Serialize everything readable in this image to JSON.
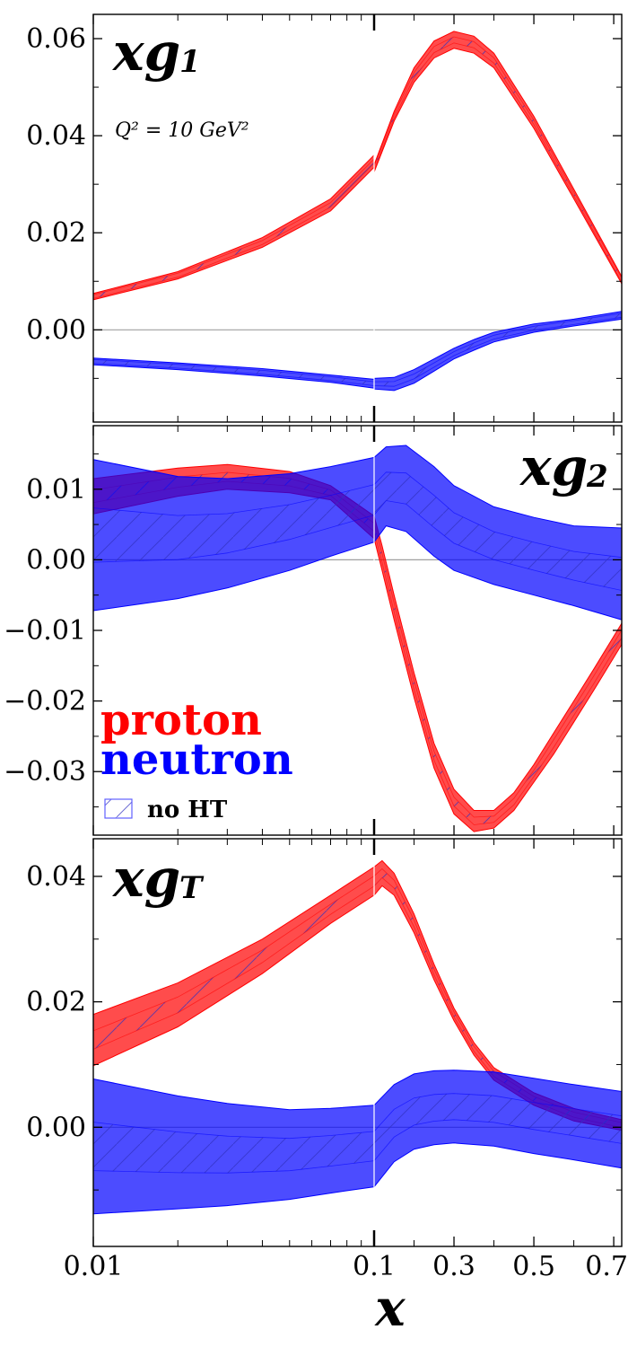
{
  "chart_data": [
    {
      "type": "area",
      "panel_label": "xg",
      "panel_label_sub": "1",
      "annotation": "Q² = 10 GeV²",
      "xlabel": "",
      "ylabel": "",
      "xscale": "log(x<0.1), linear(x>=0.1)",
      "xlim": [
        0.01,
        0.72
      ],
      "ylim": [
        -0.019,
        0.065
      ],
      "yticks": [
        0.0,
        0.02,
        0.04,
        0.06
      ],
      "ytick_labels": [
        "0.00",
        "0.02",
        "0.04",
        "0.06"
      ],
      "grid": false,
      "series": [
        {
          "name": "proton",
          "x": [
            0.01,
            0.02,
            0.04,
            0.07,
            0.1,
            0.1,
            0.15,
            0.2,
            0.25,
            0.3,
            0.35,
            0.4,
            0.5,
            0.6,
            0.72
          ],
          "upper": [
            0.0075,
            0.012,
            0.019,
            0.027,
            0.036,
            0.034,
            0.045,
            0.054,
            0.0595,
            0.0615,
            0.0605,
            0.057,
            0.044,
            0.029,
            0.011
          ],
          "lower": [
            0.0062,
            0.0105,
            0.017,
            0.0245,
            0.0335,
            0.0325,
            0.043,
            0.051,
            0.056,
            0.058,
            0.057,
            0.054,
            0.0415,
            0.027,
            0.0095
          ]
        },
        {
          "name": "neutron",
          "x": [
            0.01,
            0.02,
            0.04,
            0.07,
            0.1,
            0.1,
            0.15,
            0.2,
            0.25,
            0.3,
            0.35,
            0.4,
            0.5,
            0.6,
            0.72
          ],
          "upper": [
            -0.0058,
            -0.0068,
            -0.008,
            -0.0093,
            -0.0102,
            -0.01,
            -0.0098,
            -0.0082,
            -0.006,
            -0.0038,
            -0.002,
            -0.0005,
            0.0012,
            0.0022,
            0.0038
          ],
          "lower": [
            -0.0072,
            -0.0082,
            -0.0095,
            -0.0108,
            -0.012,
            -0.0122,
            -0.0125,
            -0.011,
            -0.0085,
            -0.006,
            -0.0042,
            -0.0025,
            -0.0005,
            0.0008,
            0.0022
          ]
        }
      ]
    },
    {
      "type": "area",
      "panel_label": "xg",
      "panel_label_sub": "2",
      "xlabel": "",
      "ylabel": "",
      "xscale": "log(x<0.1), linear(x>=0.1)",
      "xlim": [
        0.01,
        0.72
      ],
      "ylim": [
        -0.039,
        0.019
      ],
      "yticks": [
        -0.03,
        -0.02,
        -0.01,
        0.0,
        0.01
      ],
      "ytick_labels": [
        "−0.03",
        "−0.02",
        "−0.01",
        "0.00",
        "0.01"
      ],
      "grid": false,
      "series": [
        {
          "name": "proton",
          "x": [
            0.01,
            0.02,
            0.03,
            0.05,
            0.07,
            0.1,
            0.1,
            0.12,
            0.15,
            0.2,
            0.25,
            0.3,
            0.35,
            0.4,
            0.45,
            0.5,
            0.55,
            0.6,
            0.65,
            0.72
          ],
          "upper": [
            0.0115,
            0.013,
            0.0135,
            0.0125,
            0.0105,
            0.0062,
            0.0062,
            0.002,
            -0.005,
            -0.016,
            -0.026,
            -0.0325,
            -0.0355,
            -0.0355,
            -0.033,
            -0.029,
            -0.0245,
            -0.02,
            -0.0155,
            -0.009
          ],
          "lower": [
            0.0065,
            0.009,
            0.01,
            0.0095,
            0.0085,
            0.003,
            0.003,
            -0.0015,
            -0.0085,
            -0.0195,
            -0.0295,
            -0.036,
            -0.0385,
            -0.038,
            -0.0355,
            -0.0315,
            -0.0275,
            -0.023,
            -0.0185,
            -0.012
          ]
        },
        {
          "name": "neutron",
          "x": [
            0.01,
            0.02,
            0.03,
            0.05,
            0.07,
            0.1,
            0.1,
            0.13,
            0.18,
            0.25,
            0.3,
            0.4,
            0.5,
            0.6,
            0.72
          ],
          "upper": [
            0.0142,
            0.0118,
            0.0115,
            0.0122,
            0.0132,
            0.0145,
            0.0145,
            0.016,
            0.0162,
            0.0132,
            0.0105,
            0.0075,
            0.006,
            0.0048,
            0.0045
          ],
          "lower": [
            -0.0072,
            -0.0055,
            -0.004,
            -0.0015,
            0.0005,
            0.0025,
            0.0025,
            0.0048,
            0.004,
            0.0005,
            -0.0015,
            -0.0035,
            -0.005,
            -0.0065,
            -0.0085
          ]
        }
      ]
    },
    {
      "type": "area",
      "panel_label": "xg",
      "panel_label_sub": "T",
      "xlabel": "",
      "ylabel": "",
      "xscale": "log(x<0.1), linear(x>=0.1)",
      "xlim": [
        0.01,
        0.72
      ],
      "ylim": [
        -0.019,
        0.046
      ],
      "yticks": [
        0.0,
        0.02,
        0.04
      ],
      "ytick_labels": [
        "0.00",
        "0.02",
        "0.04"
      ],
      "grid": false,
      "series": [
        {
          "name": "proton",
          "x": [
            0.01,
            0.02,
            0.04,
            0.07,
            0.1,
            0.1,
            0.12,
            0.15,
            0.2,
            0.25,
            0.3,
            0.35,
            0.4,
            0.5,
            0.6,
            0.72
          ],
          "upper": [
            0.018,
            0.023,
            0.03,
            0.037,
            0.0415,
            0.0415,
            0.0425,
            0.0405,
            0.034,
            0.026,
            0.019,
            0.0135,
            0.0095,
            0.0055,
            0.003,
            0.0012
          ],
          "lower": [
            0.0098,
            0.016,
            0.0245,
            0.0325,
            0.037,
            0.037,
            0.0385,
            0.037,
            0.031,
            0.0235,
            0.017,
            0.0115,
            0.0075,
            0.0035,
            0.001,
            -0.0005
          ]
        },
        {
          "name": "neutron",
          "x": [
            0.01,
            0.02,
            0.03,
            0.05,
            0.07,
            0.1,
            0.1,
            0.15,
            0.2,
            0.25,
            0.3,
            0.4,
            0.5,
            0.6,
            0.72
          ],
          "upper": [
            0.0077,
            0.005,
            0.0038,
            0.0028,
            0.003,
            0.0035,
            0.0035,
            0.0068,
            0.0085,
            0.009,
            0.0091,
            0.0088,
            0.0078,
            0.0068,
            0.0057
          ],
          "lower": [
            -0.0138,
            -0.013,
            -0.0125,
            -0.0115,
            -0.0105,
            -0.0095,
            -0.0095,
            -0.0055,
            -0.0035,
            -0.0028,
            -0.0025,
            -0.003,
            -0.0042,
            -0.0052,
            -0.0065
          ]
        }
      ]
    }
  ],
  "xticks": [
    0.01,
    0.1,
    0.3,
    0.5,
    0.7
  ],
  "xtick_labels": [
    "0.01",
    "0.1",
    "0.3",
    "0.5",
    "0.7"
  ],
  "xlabel": "x",
  "legend": {
    "proton": "proton",
    "neutron": "neutron",
    "noht": "no HT",
    "placement": "lower-left of middle panel"
  },
  "colors": {
    "proton": "#ff0000",
    "neutron": "#0000ff",
    "zero_line": "#888888"
  }
}
